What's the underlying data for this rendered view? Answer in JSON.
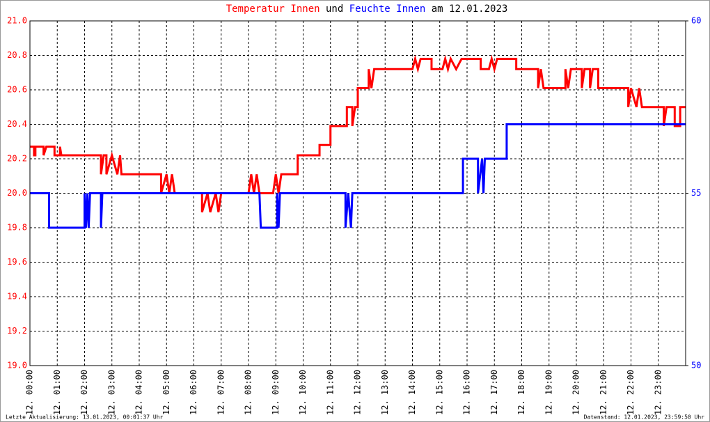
{
  "chart_data": {
    "type": "line",
    "title": [
      "Temperatur Innen",
      "und",
      "Feuchte Innen",
      "am 12.01.2023"
    ],
    "footer_left": "Letzte Aktualisierung: 13.01.2023, 00:01:37 Uhr",
    "footer_right": "Datenstand: 12.01.2023, 23:59:50 Uhr",
    "grid": true,
    "xlim": [
      0,
      24
    ],
    "xticks": [
      {
        "value": 0,
        "label": "12. 00:00"
      },
      {
        "value": 1,
        "label": "12. 01:00"
      },
      {
        "value": 2,
        "label": "12. 02:00"
      },
      {
        "value": 3,
        "label": "12. 03:00"
      },
      {
        "value": 4,
        "label": "12. 04:00"
      },
      {
        "value": 5,
        "label": "12. 05:00"
      },
      {
        "value": 6,
        "label": "12. 06:00"
      },
      {
        "value": 7,
        "label": "12. 07:00"
      },
      {
        "value": 8,
        "label": "12. 08:00"
      },
      {
        "value": 9,
        "label": "12. 09:00"
      },
      {
        "value": 10,
        "label": "12. 10:00"
      },
      {
        "value": 11,
        "label": "12. 11:00"
      },
      {
        "value": 12,
        "label": "12. 12:00"
      },
      {
        "value": 13,
        "label": "12. 13:00"
      },
      {
        "value": 14,
        "label": "12. 14:00"
      },
      {
        "value": 15,
        "label": "12. 15:00"
      },
      {
        "value": 16,
        "label": "12. 16:00"
      },
      {
        "value": 17,
        "label": "12. 17:00"
      },
      {
        "value": 18,
        "label": "12. 18:00"
      },
      {
        "value": 19,
        "label": "12. 19:00"
      },
      {
        "value": 20,
        "label": "12. 20:00"
      },
      {
        "value": 21,
        "label": "12. 21:00"
      },
      {
        "value": 22,
        "label": "12. 22:00"
      },
      {
        "value": 23,
        "label": "12. 23:00"
      }
    ],
    "ylim": [
      19,
      21
    ],
    "yticks": [
      {
        "value": 19,
        "label": "19.0"
      },
      19.2,
      19.4,
      19.6,
      19.8,
      {
        "value": 20,
        "label": "20.0"
      },
      20.2,
      20.4,
      20.6,
      20.8,
      {
        "value": 21,
        "label": "21.0"
      }
    ],
    "y2lim": [
      50,
      60
    ],
    "y2ticks": [
      50,
      55,
      60
    ],
    "series": [
      {
        "name": "Temperatur Innen",
        "color": "#ff0000",
        "x": [
          0,
          0.15,
          0.15,
          0.2,
          0.2,
          0.5,
          0.5,
          0.6,
          0.9,
          0.9,
          1.1,
          1.1,
          1.15,
          2.6,
          2.6,
          2.7,
          2.8,
          2.8,
          3.0,
          3.2,
          3.3,
          3.35,
          4.8,
          4.8,
          5.0,
          5.1,
          5.2,
          5.3,
          6.3,
          6.3,
          6.5,
          6.6,
          6.8,
          6.9,
          7.0,
          8.0,
          8.1,
          8.2,
          8.3,
          8.4,
          8.9,
          9.0,
          9.1,
          9.2,
          9.8,
          9.8,
          10.6,
          10.6,
          11.0,
          11.0,
          11.6,
          11.6,
          11.8,
          11.8,
          11.9,
          12.0,
          12.0,
          12.4,
          12.4,
          12.5,
          12.6,
          14.0,
          14.1,
          14.2,
          14.3,
          14.7,
          14.7,
          15.1,
          15.2,
          15.3,
          15.4,
          15.6,
          15.8,
          16.5,
          16.5,
          16.8,
          16.9,
          17.0,
          17.1,
          17.8,
          17.8,
          18.6,
          18.6,
          18.7,
          18.8,
          19.6,
          19.6,
          19.7,
          19.8,
          20.2,
          20.2,
          20.3,
          20.5,
          20.5,
          20.6,
          20.8,
          20.8,
          21.9,
          21.9,
          22.0,
          22.2,
          22.3,
          22.4,
          23.2,
          23.2,
          23.3,
          23.6,
          23.6,
          23.8,
          23.8,
          24
        ],
        "values": [
          20.27,
          20.27,
          20.22,
          20.22,
          20.27,
          20.27,
          20.22,
          20.27,
          20.27,
          20.22,
          20.22,
          20.27,
          20.22,
          20.22,
          20.11,
          20.22,
          20.22,
          20.11,
          20.22,
          20.11,
          20.22,
          20.11,
          20.11,
          20.0,
          20.11,
          20.0,
          20.11,
          20.0,
          20.0,
          19.89,
          20.0,
          19.89,
          20.0,
          19.89,
          20.0,
          20.0,
          20.11,
          20.0,
          20.11,
          20.0,
          20.0,
          20.11,
          20.0,
          20.11,
          20.11,
          20.22,
          20.22,
          20.28,
          20.28,
          20.39,
          20.39,
          20.5,
          20.5,
          20.39,
          20.5,
          20.5,
          20.61,
          20.61,
          20.72,
          20.61,
          20.72,
          20.72,
          20.78,
          20.72,
          20.78,
          20.78,
          20.72,
          20.72,
          20.78,
          20.72,
          20.78,
          20.72,
          20.78,
          20.78,
          20.72,
          20.72,
          20.78,
          20.72,
          20.78,
          20.78,
          20.72,
          20.72,
          20.61,
          20.72,
          20.61,
          20.61,
          20.72,
          20.61,
          20.72,
          20.72,
          20.61,
          20.72,
          20.72,
          20.61,
          20.72,
          20.72,
          20.61,
          20.61,
          20.5,
          20.61,
          20.5,
          20.61,
          20.5,
          20.5,
          20.39,
          20.5,
          20.5,
          20.39,
          20.39,
          20.5,
          20.5
        ]
      },
      {
        "name": "Feuchte Innen",
        "color": "#0000ff",
        "axis": "y2",
        "x": [
          0,
          0.7,
          0.7,
          2.0,
          2.0,
          2.05,
          2.1,
          2.15,
          2.2,
          2.6,
          2.6,
          2.65,
          8.4,
          8.45,
          9.05,
          9.05,
          9.1,
          9.15,
          11.55,
          11.55,
          11.65,
          11.75,
          11.8,
          15.85,
          15.85,
          16.4,
          16.4,
          16.55,
          16.6,
          16.65,
          17.45,
          17.45,
          24
        ],
        "values": [
          55,
          55,
          54,
          54,
          55,
          54,
          55,
          54,
          55,
          55,
          54,
          55,
          55,
          54,
          54,
          55,
          54,
          55,
          55,
          54,
          55,
          54,
          55,
          55,
          56,
          56,
          55,
          56,
          55,
          56,
          56,
          57,
          57
        ]
      }
    ]
  }
}
